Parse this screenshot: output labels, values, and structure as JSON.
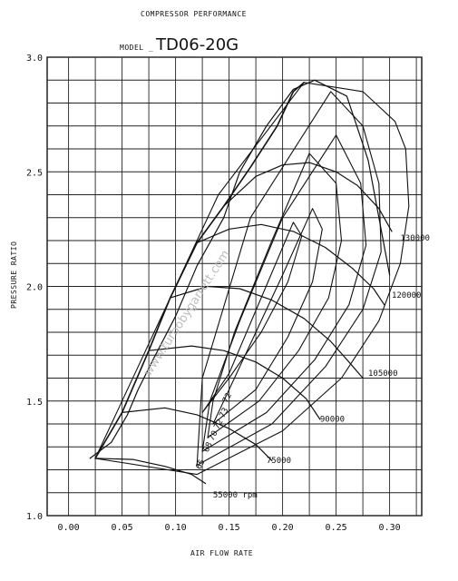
{
  "chart_data": {
    "type": "line",
    "title": "COMPRESSOR PERFORMANCE",
    "model_label": "MODEL",
    "model_value": "TD06-20G",
    "xlabel": "AIR FLOW RATE",
    "ylabel": "PRESSURE RATIO",
    "xlim": [
      -0.02,
      0.33
    ],
    "ylim": [
      1.0,
      3.0
    ],
    "x_ticks": [
      {
        "value": 0.0,
        "label": "0.00"
      },
      {
        "value": 0.05,
        "label": "0.05"
      },
      {
        "value": 0.1,
        "label": "0.10"
      },
      {
        "value": 0.15,
        "label": "0.15"
      },
      {
        "value": 0.2,
        "label": "0.20"
      },
      {
        "value": 0.25,
        "label": "0.25"
      },
      {
        "value": 0.3,
        "label": "0.30"
      }
    ],
    "y_ticks": [
      {
        "value": 1.0,
        "label": "1.0"
      },
      {
        "value": 1.5,
        "label": "1.5"
      },
      {
        "value": 2.0,
        "label": "2.0"
      },
      {
        "value": 2.5,
        "label": "2.5"
      },
      {
        "value": 3.0,
        "label": "3.0"
      }
    ],
    "grid": true,
    "watermark": "www.turbobygarrett.com",
    "surge_line": {
      "x": [
        0.025,
        0.05,
        0.075,
        0.095,
        0.12,
        0.145,
        0.17,
        0.195,
        0.21,
        0.22
      ],
      "y": [
        1.25,
        1.45,
        1.72,
        1.95,
        2.19,
        2.35,
        2.52,
        2.7,
        2.85,
        2.89
      ]
    },
    "speed_lines": [
      {
        "name": "55000 rpm",
        "label": "55000 rpm",
        "label_at": [
          0.135,
          1.08
        ],
        "x": [
          0.025,
          0.06,
          0.09,
          0.115,
          0.128
        ],
        "y": [
          1.25,
          1.245,
          1.215,
          1.18,
          1.14
        ]
      },
      {
        "name": "75000",
        "label": "75000",
        "label_at": [
          0.185,
          1.23
        ],
        "x": [
          0.05,
          0.09,
          0.12,
          0.15,
          0.175,
          0.19
        ],
        "y": [
          1.45,
          1.47,
          1.44,
          1.38,
          1.31,
          1.24
        ]
      },
      {
        "name": "90000",
        "label": "90000",
        "label_at": [
          0.235,
          1.41
        ],
        "x": [
          0.075,
          0.115,
          0.145,
          0.175,
          0.2,
          0.222,
          0.235
        ],
        "y": [
          1.72,
          1.74,
          1.72,
          1.67,
          1.6,
          1.51,
          1.42
        ]
      },
      {
        "name": "105000",
        "label": "105000",
        "label_at": [
          0.28,
          1.61
        ],
        "x": [
          0.095,
          0.13,
          0.16,
          0.19,
          0.22,
          0.245,
          0.262,
          0.275
        ],
        "y": [
          1.95,
          2.0,
          1.99,
          1.94,
          1.86,
          1.76,
          1.67,
          1.6
        ]
      },
      {
        "name": "120000",
        "label": "120000",
        "label_at": [
          0.302,
          1.95
        ],
        "x": [
          0.12,
          0.15,
          0.18,
          0.21,
          0.24,
          0.265,
          0.285,
          0.295
        ],
        "y": [
          2.19,
          2.25,
          2.27,
          2.24,
          2.17,
          2.08,
          1.99,
          1.92
        ]
      },
      {
        "name": "130000",
        "label": "130000",
        "label_at": [
          0.31,
          2.2
        ],
        "x": [
          0.145,
          0.175,
          0.2,
          0.225,
          0.25,
          0.27,
          0.29,
          0.302
        ],
        "y": [
          2.35,
          2.48,
          2.53,
          2.54,
          2.5,
          2.44,
          2.34,
          2.24
        ]
      }
    ],
    "efficiency_islands": [
      {
        "label": "65",
        "label_at": [
          0.123,
          1.2
        ],
        "x": [
          0.025,
          0.12,
          0.2,
          0.255,
          0.29,
          0.31,
          0.318,
          0.315,
          0.305,
          0.275,
          0.22,
          0.14,
          0.08,
          0.04,
          0.025
        ],
        "y": [
          1.25,
          1.18,
          1.37,
          1.6,
          1.85,
          2.1,
          2.35,
          2.6,
          2.72,
          2.85,
          2.89,
          2.4,
          1.8,
          1.4,
          1.25
        ]
      },
      {
        "label": "68",
        "label_at": [
          0.13,
          1.275
        ],
        "x": [
          0.12,
          0.19,
          0.24,
          0.275,
          0.292,
          0.29,
          0.275,
          0.245,
          0.17,
          0.125,
          0.12
        ],
        "y": [
          1.22,
          1.4,
          1.65,
          1.9,
          2.15,
          2.45,
          2.7,
          2.85,
          2.3,
          1.6,
          1.22
        ]
      },
      {
        "label": "70",
        "label_at": [
          0.135,
          1.325
        ],
        "x": [
          0.125,
          0.185,
          0.23,
          0.262,
          0.278,
          0.273,
          0.25,
          0.2,
          0.16,
          0.132,
          0.125
        ],
        "y": [
          1.28,
          1.45,
          1.68,
          1.92,
          2.18,
          2.45,
          2.66,
          2.3,
          1.85,
          1.5,
          1.28
        ]
      },
      {
        "label": "72",
        "label_at": [
          0.14,
          1.375
        ],
        "x": [
          0.13,
          0.178,
          0.215,
          0.243,
          0.255,
          0.25,
          0.225,
          0.19,
          0.155,
          0.135,
          0.13
        ],
        "y": [
          1.34,
          1.5,
          1.72,
          1.95,
          2.2,
          2.45,
          2.58,
          2.2,
          1.8,
          1.5,
          1.34
        ]
      },
      {
        "label": "73",
        "label_at": [
          0.145,
          1.425
        ],
        "x": [
          0.135,
          0.175,
          0.205,
          0.228,
          0.237,
          0.228,
          0.2,
          0.17,
          0.145,
          0.135
        ],
        "y": [
          1.4,
          1.55,
          1.78,
          2.02,
          2.25,
          2.34,
          2.05,
          1.75,
          1.5,
          1.4
        ]
      },
      {
        "label": "72",
        "label_at": [
          0.148,
          1.49
        ],
        "x": [
          0.125,
          0.15,
          0.18,
          0.205,
          0.218,
          0.21,
          0.18,
          0.15,
          0.125
        ],
        "y": [
          1.45,
          1.6,
          1.8,
          2.02,
          2.22,
          2.28,
          1.95,
          1.62,
          1.45
        ]
      }
    ],
    "surge_margin_line": {
      "x": [
        0.02,
        0.04,
        0.055,
        0.065,
        0.08,
        0.1,
        0.12,
        0.145,
        0.16,
        0.185,
        0.21,
        0.23,
        0.26,
        0.28,
        0.3
      ],
      "y": [
        1.25,
        1.32,
        1.44,
        1.55,
        1.69,
        1.87,
        2.09,
        2.3,
        2.5,
        2.7,
        2.86,
        2.9,
        2.83,
        2.55,
        2.05
      ]
    }
  }
}
